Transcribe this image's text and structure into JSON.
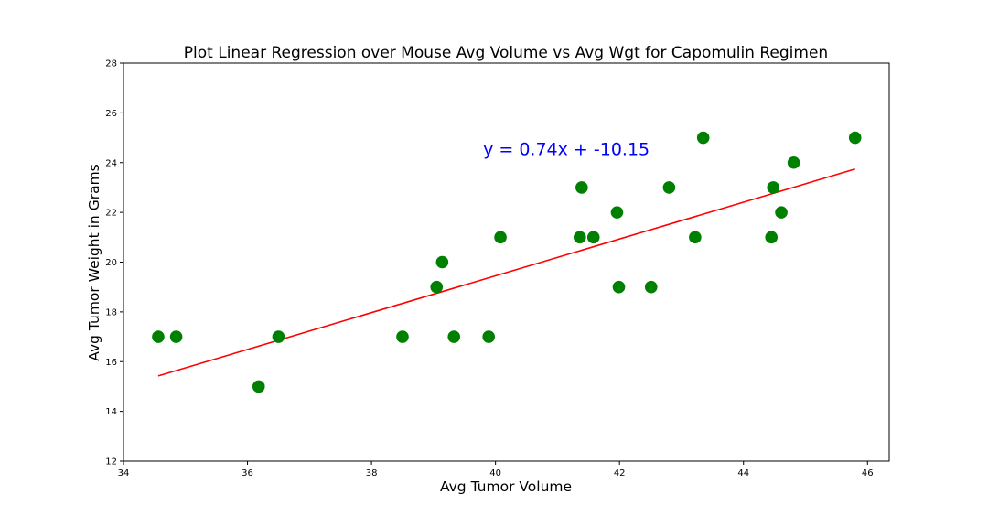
{
  "chart_data": {
    "type": "scatter",
    "title": "Plot Linear Regression over Mouse Avg Volume vs Avg Wgt for Capomulin Regimen",
    "xlabel": "Avg Tumor Volume",
    "ylabel": "Avg Tumor Weight in Grams",
    "xlim": [
      34.0,
      46.35
    ],
    "ylim": [
      12,
      28
    ],
    "xticks": [
      34,
      36,
      38,
      40,
      42,
      44,
      46
    ],
    "yticks": [
      12,
      14,
      16,
      18,
      20,
      22,
      24,
      26,
      28
    ],
    "grid": false,
    "marker_color": "#008000",
    "line_color": "#ff0000",
    "annotation": {
      "text": "y = 0.74x + -10.15",
      "color": "#0000ff",
      "x": 39.8,
      "y": 24.3
    },
    "regression": {
      "slope": 0.74,
      "intercept": -10.15,
      "x_range": [
        34.56,
        45.8
      ]
    },
    "points": [
      {
        "x": 34.56,
        "y": 17
      },
      {
        "x": 34.85,
        "y": 17
      },
      {
        "x": 36.18,
        "y": 15
      },
      {
        "x": 36.5,
        "y": 17
      },
      {
        "x": 38.5,
        "y": 17
      },
      {
        "x": 39.05,
        "y": 19
      },
      {
        "x": 39.14,
        "y": 20
      },
      {
        "x": 39.33,
        "y": 17
      },
      {
        "x": 39.89,
        "y": 17
      },
      {
        "x": 40.08,
        "y": 21
      },
      {
        "x": 41.36,
        "y": 21
      },
      {
        "x": 41.39,
        "y": 23
      },
      {
        "x": 41.58,
        "y": 21
      },
      {
        "x": 41.96,
        "y": 22
      },
      {
        "x": 41.99,
        "y": 19
      },
      {
        "x": 42.51,
        "y": 19
      },
      {
        "x": 42.8,
        "y": 23
      },
      {
        "x": 43.22,
        "y": 21
      },
      {
        "x": 43.35,
        "y": 25
      },
      {
        "x": 44.45,
        "y": 21
      },
      {
        "x": 44.48,
        "y": 23
      },
      {
        "x": 44.61,
        "y": 22
      },
      {
        "x": 44.81,
        "y": 24
      },
      {
        "x": 45.8,
        "y": 25
      }
    ]
  }
}
